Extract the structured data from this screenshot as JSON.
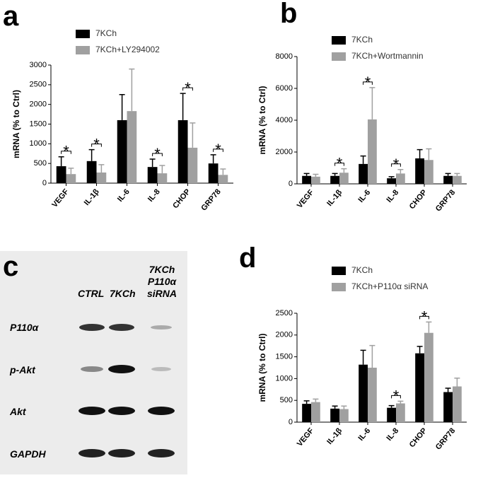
{
  "chart_data": [
    {
      "type": "bar",
      "panel_label": "a",
      "y_label": "mRNA (% to Ctrl)",
      "categories": [
        "VEGF",
        "IL-1β",
        "IL-6",
        "IL-8",
        "CHOP",
        "GRP78"
      ],
      "series": [
        {
          "name": "7KCh",
          "color": "#000000",
          "values": [
            430,
            560,
            1600,
            410,
            1600,
            500
          ],
          "errors": [
            240,
            290,
            650,
            200,
            680,
            220
          ]
        },
        {
          "name": "7KCh+LY294002",
          "color": "#a0a0a0",
          "values": [
            230,
            270,
            1830,
            250,
            900,
            210
          ],
          "errors": [
            150,
            200,
            1070,
            200,
            630,
            150
          ]
        }
      ],
      "significance": [
        "*",
        "*",
        null,
        "*",
        "*",
        "*"
      ],
      "ylim": [
        0,
        3000
      ],
      "yticks": [
        0,
        500,
        1000,
        1500,
        2000,
        2500,
        3000
      ]
    },
    {
      "type": "bar",
      "panel_label": "b",
      "y_label": "mRNA (% to Ctrl)",
      "categories": [
        "VEGF",
        "IL-1β",
        "IL-6",
        "IL-8",
        "CHOP",
        "GRP78"
      ],
      "series": [
        {
          "name": "7KCh",
          "color": "#000000",
          "values": [
            500,
            500,
            1250,
            350,
            1600,
            500
          ],
          "errors": [
            150,
            150,
            500,
            100,
            550,
            150
          ]
        },
        {
          "name": "7KCh+Wortmannin",
          "color": "#a0a0a0",
          "values": [
            450,
            700,
            4050,
            650,
            1500,
            500
          ],
          "errors": [
            150,
            250,
            2000,
            250,
            700,
            150
          ]
        }
      ],
      "significance": [
        null,
        "*",
        "*",
        "*",
        null,
        null
      ],
      "ylim": [
        0,
        8000
      ],
      "yticks": [
        0,
        2000,
        4000,
        6000,
        8000
      ]
    },
    {
      "type": "bar",
      "panel_label": "d",
      "y_label": "mRNA (% to Ctrl)",
      "categories": [
        "VEGF",
        "IL-1β",
        "IL-6",
        "IL-8",
        "CHOP",
        "GRP78"
      ],
      "series": [
        {
          "name": "7KCh",
          "color": "#000000",
          "values": [
            420,
            310,
            1320,
            330,
            1580,
            690
          ],
          "errors": [
            70,
            60,
            330,
            50,
            160,
            90
          ]
        },
        {
          "name": "7KCh+P110α siRNA",
          "color": "#a0a0a0",
          "values": [
            460,
            300,
            1250,
            430,
            2050,
            820
          ],
          "errors": [
            70,
            70,
            510,
            50,
            250,
            190
          ]
        }
      ],
      "significance": [
        null,
        null,
        null,
        "*",
        "*",
        null
      ],
      "ylim": [
        0,
        2500
      ],
      "yticks": [
        0,
        500,
        1000,
        1500,
        2000,
        2500
      ]
    }
  ],
  "blot": {
    "panel_label": "c",
    "columns": [
      "CTRL",
      "7KCh",
      [
        "7KCh",
        "P110α",
        "siRNA"
      ]
    ],
    "rows": [
      "P110α",
      "p-Akt",
      "Akt",
      "GAPDH"
    ]
  }
}
